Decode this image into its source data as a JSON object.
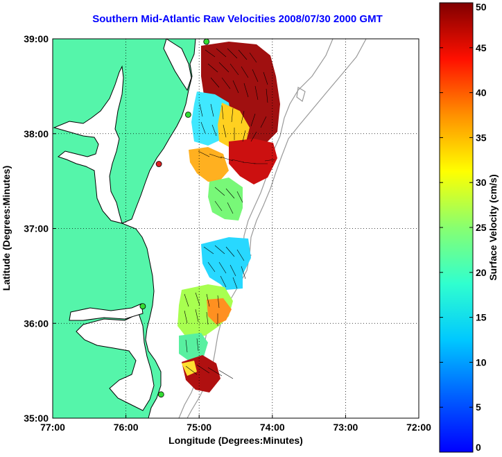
{
  "title": "Southern Mid-Atlantic Raw Velocities 2008/07/30 2000 GMT",
  "map": {
    "xlabel": "Longitude (Degrees:Minutes)",
    "ylabel": "Latitude (Degrees:Minutes)",
    "x_ticks": [
      "77:00",
      "76:00",
      "75:00",
      "74:00",
      "73:00",
      "72:00"
    ],
    "y_ticks": [
      "39:00",
      "38:00",
      "37:00",
      "36:00",
      "35:00"
    ],
    "lon_range": [
      -77,
      -72
    ],
    "lat_range": [
      35,
      39
    ],
    "grid": true,
    "land_color": "#55f5aa",
    "stations": [
      {
        "lon": -74.9,
        "lat": 38.97,
        "color": "#33dd33"
      },
      {
        "lon": -75.15,
        "lat": 38.2,
        "color": "#33dd33"
      },
      {
        "lon": -75.55,
        "lat": 37.68,
        "color": "#dd2222"
      },
      {
        "lon": -75.77,
        "lat": 36.18,
        "color": "#33dd33"
      },
      {
        "lon": -75.52,
        "lat": 35.25,
        "color": "#33dd33"
      }
    ]
  },
  "colorbar": {
    "label": "Surface Velocity (cm/s)",
    "ticks": [
      "0",
      "5",
      "10",
      "15",
      "20",
      "25",
      "30",
      "35",
      "40",
      "45",
      "50"
    ],
    "range": [
      0,
      50
    ]
  }
}
